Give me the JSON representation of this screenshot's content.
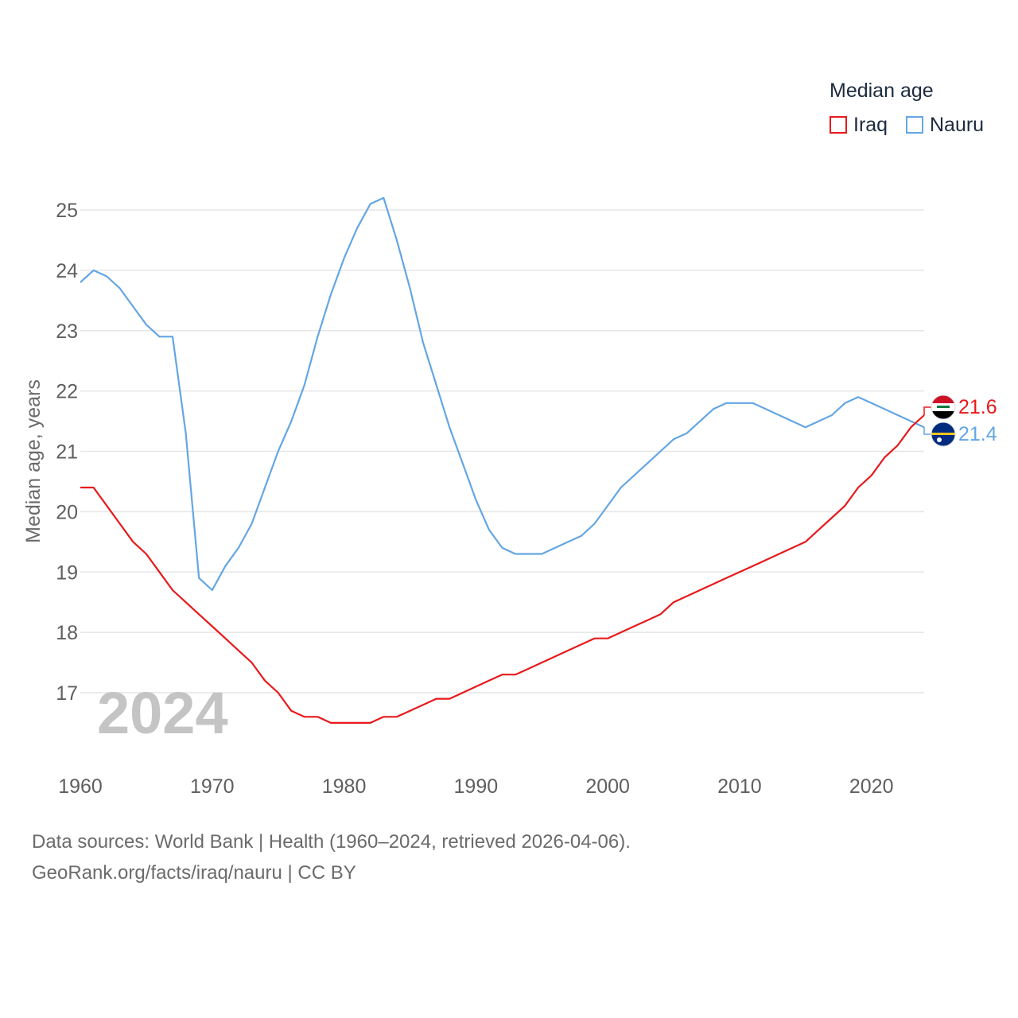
{
  "legend": {
    "title": "Median age",
    "items": [
      {
        "name": "Iraq",
        "color": "#e8191b"
      },
      {
        "name": "Nauru",
        "color": "#64a6e3"
      }
    ]
  },
  "chart_data": {
    "type": "line",
    "title": "",
    "xlabel": "",
    "ylabel": "Median age, years",
    "xlim": [
      1960,
      2024
    ],
    "ylim": [
      16,
      25.5
    ],
    "x_ticks": [
      1960,
      1970,
      1980,
      1990,
      2000,
      2010,
      2020
    ],
    "y_ticks": [
      17,
      18,
      19,
      20,
      21,
      22,
      23,
      24,
      25
    ],
    "grid": true,
    "watermark_year": "2024",
    "x": [
      1960,
      1961,
      1962,
      1963,
      1964,
      1965,
      1966,
      1967,
      1968,
      1969,
      1970,
      1971,
      1972,
      1973,
      1974,
      1975,
      1976,
      1977,
      1978,
      1979,
      1980,
      1981,
      1982,
      1983,
      1984,
      1985,
      1986,
      1987,
      1988,
      1989,
      1990,
      1991,
      1992,
      1993,
      1994,
      1995,
      1996,
      1997,
      1998,
      1999,
      2000,
      2001,
      2002,
      2003,
      2004,
      2005,
      2006,
      2007,
      2008,
      2009,
      2010,
      2011,
      2012,
      2013,
      2014,
      2015,
      2016,
      2017,
      2018,
      2019,
      2020,
      2021,
      2022,
      2023,
      2024
    ],
    "series": [
      {
        "name": "Iraq",
        "color": "#e8191b",
        "end_label": "21.6",
        "values": [
          20.4,
          20.4,
          20.1,
          19.8,
          19.5,
          19.3,
          19.0,
          18.7,
          18.5,
          18.3,
          18.1,
          17.9,
          17.7,
          17.5,
          17.2,
          17.0,
          16.7,
          16.6,
          16.6,
          16.5,
          16.5,
          16.5,
          16.5,
          16.6,
          16.6,
          16.7,
          16.8,
          16.9,
          16.9,
          17.0,
          17.1,
          17.2,
          17.3,
          17.3,
          17.4,
          17.5,
          17.6,
          17.7,
          17.8,
          17.9,
          17.9,
          18.0,
          18.1,
          18.2,
          18.3,
          18.5,
          18.6,
          18.7,
          18.8,
          18.9,
          19.0,
          19.1,
          19.2,
          19.3,
          19.4,
          19.5,
          19.7,
          19.9,
          20.1,
          20.4,
          20.6,
          20.9,
          21.1,
          21.4,
          21.6
        ]
      },
      {
        "name": "Nauru",
        "color": "#64a6e3",
        "end_label": "21.4",
        "values": [
          23.8,
          24.0,
          23.9,
          23.7,
          23.4,
          23.1,
          22.9,
          22.9,
          21.3,
          18.9,
          18.7,
          19.1,
          19.4,
          19.8,
          20.4,
          21.0,
          21.5,
          22.1,
          22.9,
          23.6,
          24.2,
          24.7,
          25.1,
          25.2,
          24.5,
          23.7,
          22.8,
          22.1,
          21.4,
          20.8,
          20.2,
          19.7,
          19.4,
          19.3,
          19.3,
          19.3,
          19.4,
          19.5,
          19.6,
          19.8,
          20.1,
          20.4,
          20.6,
          20.8,
          21.0,
          21.2,
          21.3,
          21.5,
          21.7,
          21.8,
          21.8,
          21.8,
          21.7,
          21.6,
          21.5,
          21.4,
          21.5,
          21.6,
          21.8,
          21.9,
          21.8,
          21.7,
          21.6,
          21.5,
          21.4
        ]
      }
    ]
  },
  "footer": {
    "line1": "Data sources: World Bank | Health (1960–2024, retrieved 2026-04-06).",
    "line2": "GeoRank.org/facts/iraq/nauru | CC BY"
  }
}
